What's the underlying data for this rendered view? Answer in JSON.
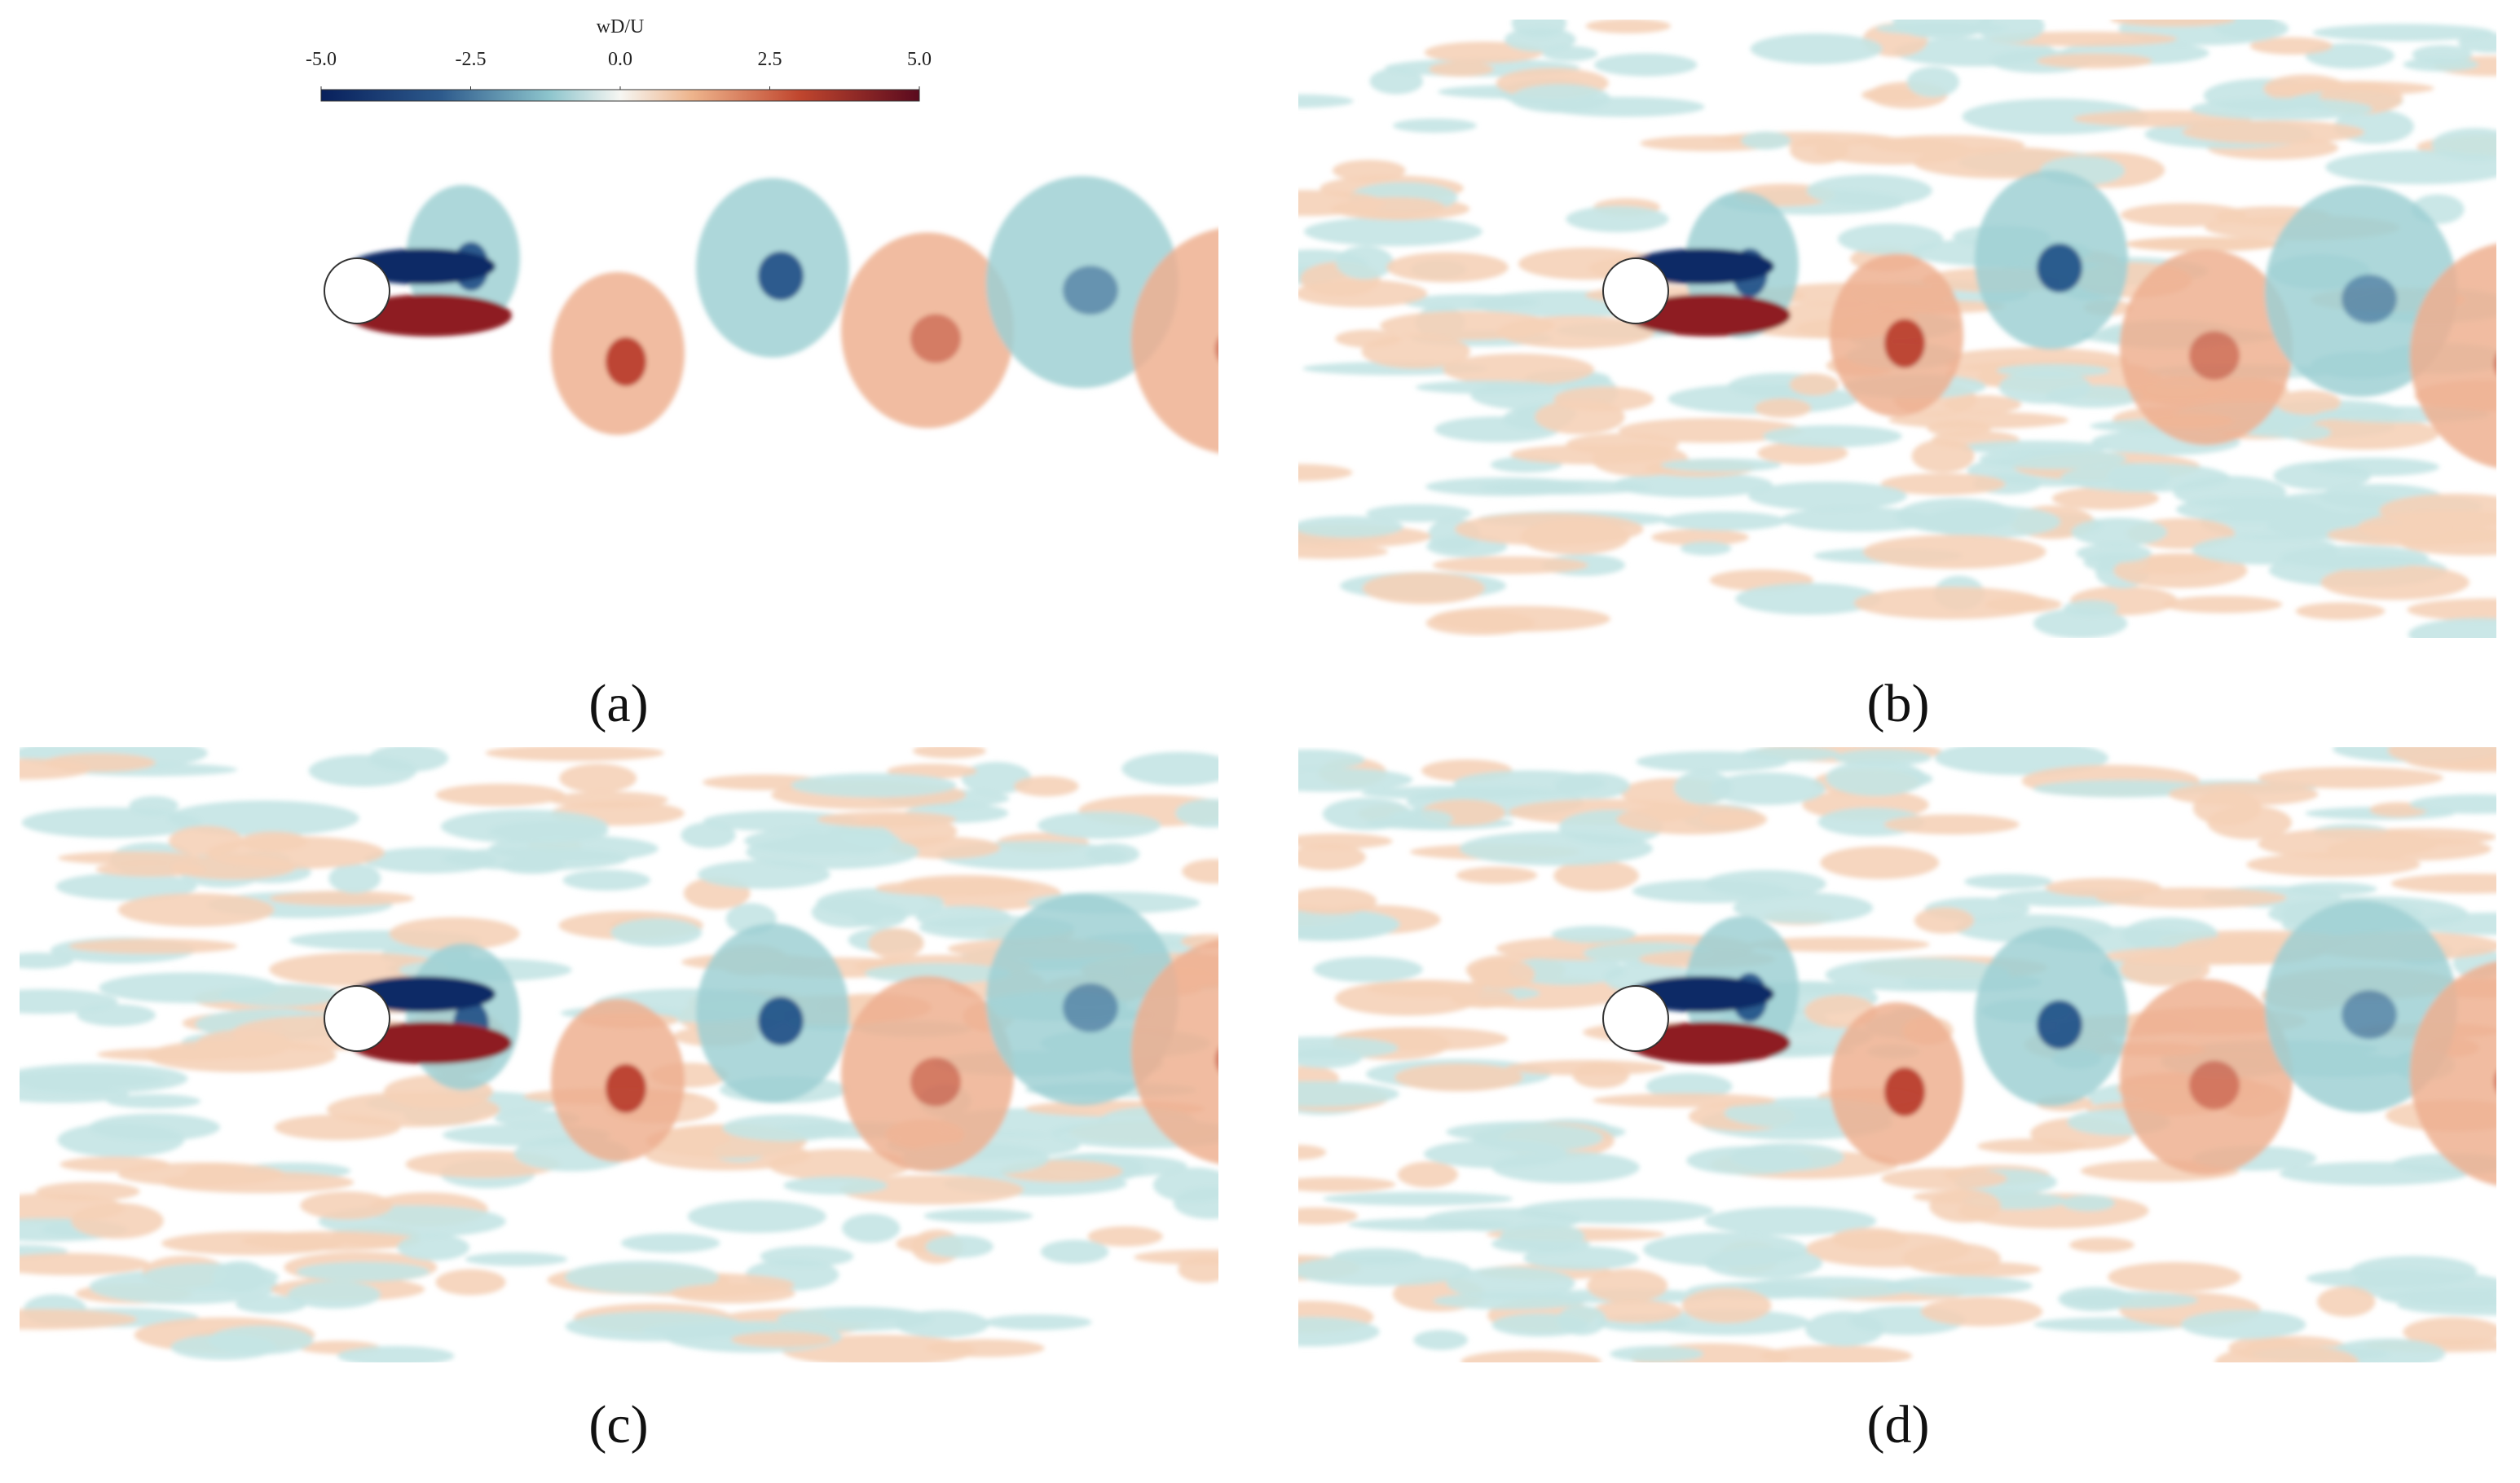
{
  "colorbar": {
    "title": "wD/U",
    "range": [
      -5,
      5
    ],
    "ticks": [
      {
        "value": -5,
        "label": "-5.0"
      },
      {
        "value": -2.5,
        "label": "-2.5"
      },
      {
        "value": 0,
        "label": "0.0"
      },
      {
        "value": 2.5,
        "label": "2.5"
      },
      {
        "value": 5,
        "label": "5.0"
      }
    ]
  },
  "panels": [
    {
      "label": "(a)"
    },
    {
      "label": "(b)"
    },
    {
      "label": "(c)"
    },
    {
      "label": "(d)"
    }
  ]
}
